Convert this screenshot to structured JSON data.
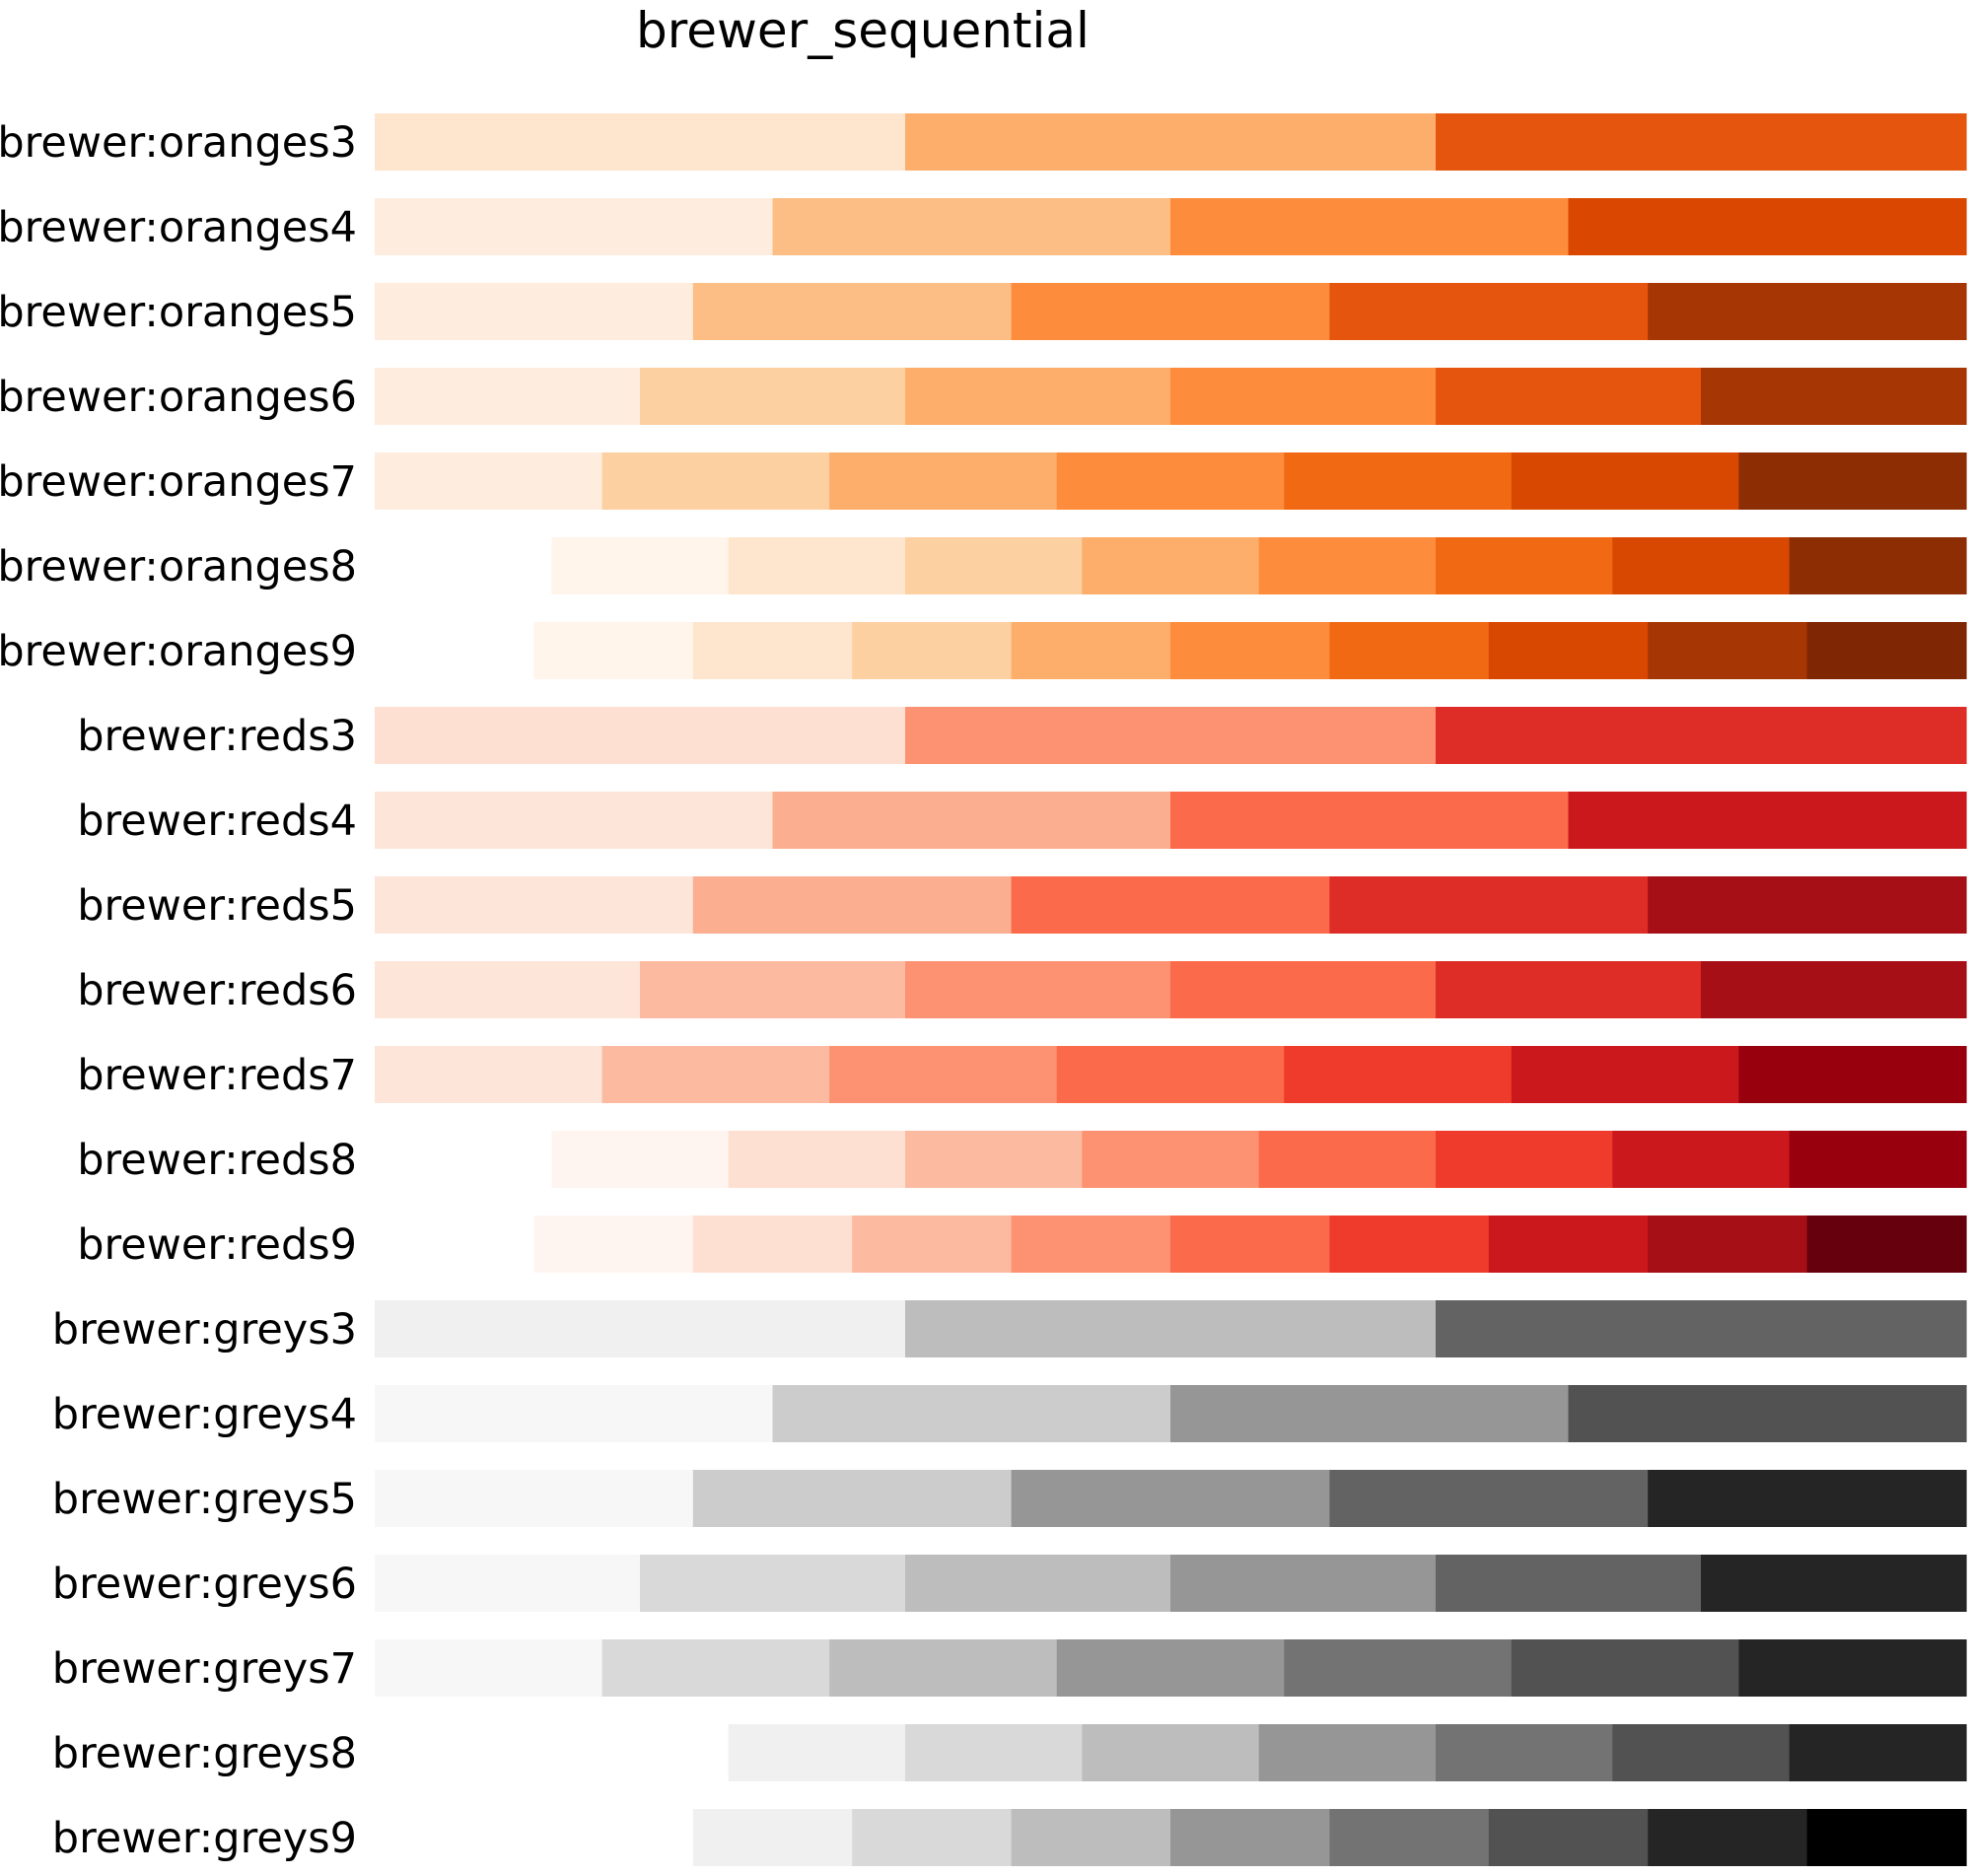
{
  "chart_data": {
    "type": "heatmap",
    "title": "brewer_sequential",
    "xlabel": "",
    "ylabel": "",
    "grid": false,
    "legend": "none",
    "rows": [
      {
        "name": "brewer:oranges3",
        "colors": [
          "#fee6ce",
          "#fdae6b",
          "#e6550d"
        ]
      },
      {
        "name": "brewer:oranges4",
        "colors": [
          "#feedde",
          "#fdbe85",
          "#fd8d3c",
          "#d94701"
        ]
      },
      {
        "name": "brewer:oranges5",
        "colors": [
          "#feedde",
          "#fdbe85",
          "#fd8d3c",
          "#e6550d",
          "#a63603"
        ]
      },
      {
        "name": "brewer:oranges6",
        "colors": [
          "#feedde",
          "#fdd0a2",
          "#fdae6b",
          "#fd8d3c",
          "#e6550d",
          "#a63603"
        ]
      },
      {
        "name": "brewer:oranges7",
        "colors": [
          "#feedde",
          "#fdd0a2",
          "#fdae6b",
          "#fd8d3c",
          "#f16913",
          "#d94801",
          "#8c2d04"
        ]
      },
      {
        "name": "brewer:oranges8",
        "colors": [
          "#fff5eb",
          "#fee6ce",
          "#fdd0a2",
          "#fdae6b",
          "#fd8d3c",
          "#f16913",
          "#d94801",
          "#8c2d04"
        ]
      },
      {
        "name": "brewer:oranges9",
        "colors": [
          "#fff5eb",
          "#fee6ce",
          "#fdd0a2",
          "#fdae6b",
          "#fd8d3c",
          "#f16913",
          "#d94801",
          "#a63603",
          "#7f2704"
        ]
      },
      {
        "name": "brewer:reds3",
        "colors": [
          "#fee0d2",
          "#fc9272",
          "#de2d26"
        ]
      },
      {
        "name": "brewer:reds4",
        "colors": [
          "#fee5d9",
          "#fcae91",
          "#fb6a4a",
          "#cb181d"
        ]
      },
      {
        "name": "brewer:reds5",
        "colors": [
          "#fee5d9",
          "#fcae91",
          "#fb6a4a",
          "#de2d26",
          "#a50f15"
        ]
      },
      {
        "name": "brewer:reds6",
        "colors": [
          "#fee5d9",
          "#fcbba1",
          "#fc9272",
          "#fb6a4a",
          "#de2d26",
          "#a50f15"
        ]
      },
      {
        "name": "brewer:reds7",
        "colors": [
          "#fee5d9",
          "#fcbba1",
          "#fc9272",
          "#fb6a4a",
          "#ef3b2c",
          "#cb181d",
          "#99000d"
        ]
      },
      {
        "name": "brewer:reds8",
        "colors": [
          "#fff5f0",
          "#fee0d2",
          "#fcbba1",
          "#fc9272",
          "#fb6a4a",
          "#ef3b2c",
          "#cb181d",
          "#99000d"
        ]
      },
      {
        "name": "brewer:reds9",
        "colors": [
          "#fff5f0",
          "#fee0d2",
          "#fcbba1",
          "#fc9272",
          "#fb6a4a",
          "#ef3b2c",
          "#cb181d",
          "#a50f15",
          "#67000d"
        ]
      },
      {
        "name": "brewer:greys3",
        "colors": [
          "#f0f0f0",
          "#bdbdbd",
          "#636363"
        ]
      },
      {
        "name": "brewer:greys4",
        "colors": [
          "#f7f7f7",
          "#cccccc",
          "#969696",
          "#525252"
        ]
      },
      {
        "name": "brewer:greys5",
        "colors": [
          "#f7f7f7",
          "#cccccc",
          "#969696",
          "#636363",
          "#252525"
        ]
      },
      {
        "name": "brewer:greys6",
        "colors": [
          "#f7f7f7",
          "#d9d9d9",
          "#bdbdbd",
          "#969696",
          "#636363",
          "#252525"
        ]
      },
      {
        "name": "brewer:greys7",
        "colors": [
          "#f7f7f7",
          "#d9d9d9",
          "#bdbdbd",
          "#969696",
          "#737373",
          "#525252",
          "#252525"
        ]
      },
      {
        "name": "brewer:greys8",
        "colors": [
          "#ffffff",
          "#f0f0f0",
          "#d9d9d9",
          "#bdbdbd",
          "#969696",
          "#737373",
          "#525252",
          "#252525"
        ]
      },
      {
        "name": "brewer:greys9",
        "colors": [
          "#ffffff",
          "#f0f0f0",
          "#d9d9d9",
          "#bdbdbd",
          "#969696",
          "#737373",
          "#525252",
          "#252525",
          "#000000"
        ]
      }
    ]
  }
}
